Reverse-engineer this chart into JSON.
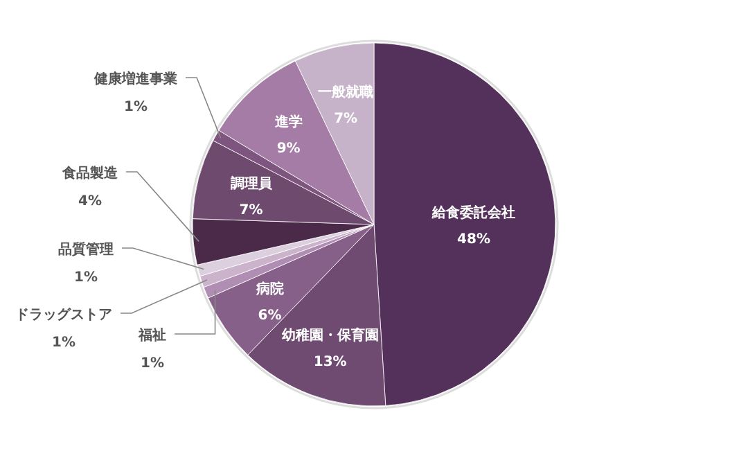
{
  "chart_data": {
    "type": "pie",
    "categories": [
      "給食委託会社",
      "幼稚園・保育園",
      "病院",
      "福祉",
      "ドラッグストア",
      "品質管理",
      "食品製造",
      "調理員",
      "健康増進事業",
      "進学",
      "一般就職"
    ],
    "values": [
      48,
      13,
      6,
      1,
      1,
      1,
      4,
      7,
      1,
      9,
      7
    ],
    "value_labels": [
      "48%",
      "13%",
      "6%",
      "1%",
      "1%",
      "1%",
      "4%",
      "7%",
      "1%",
      "9%",
      "7%"
    ],
    "colors": [
      "#54315a",
      "#6f4b72",
      "#87608a",
      "#b08db2",
      "#cbb3cc",
      "#ddd0de",
      "#4a2a48",
      "#6e4a6e",
      "#7d557e",
      "#a47ca6",
      "#c7b3c9"
    ]
  }
}
